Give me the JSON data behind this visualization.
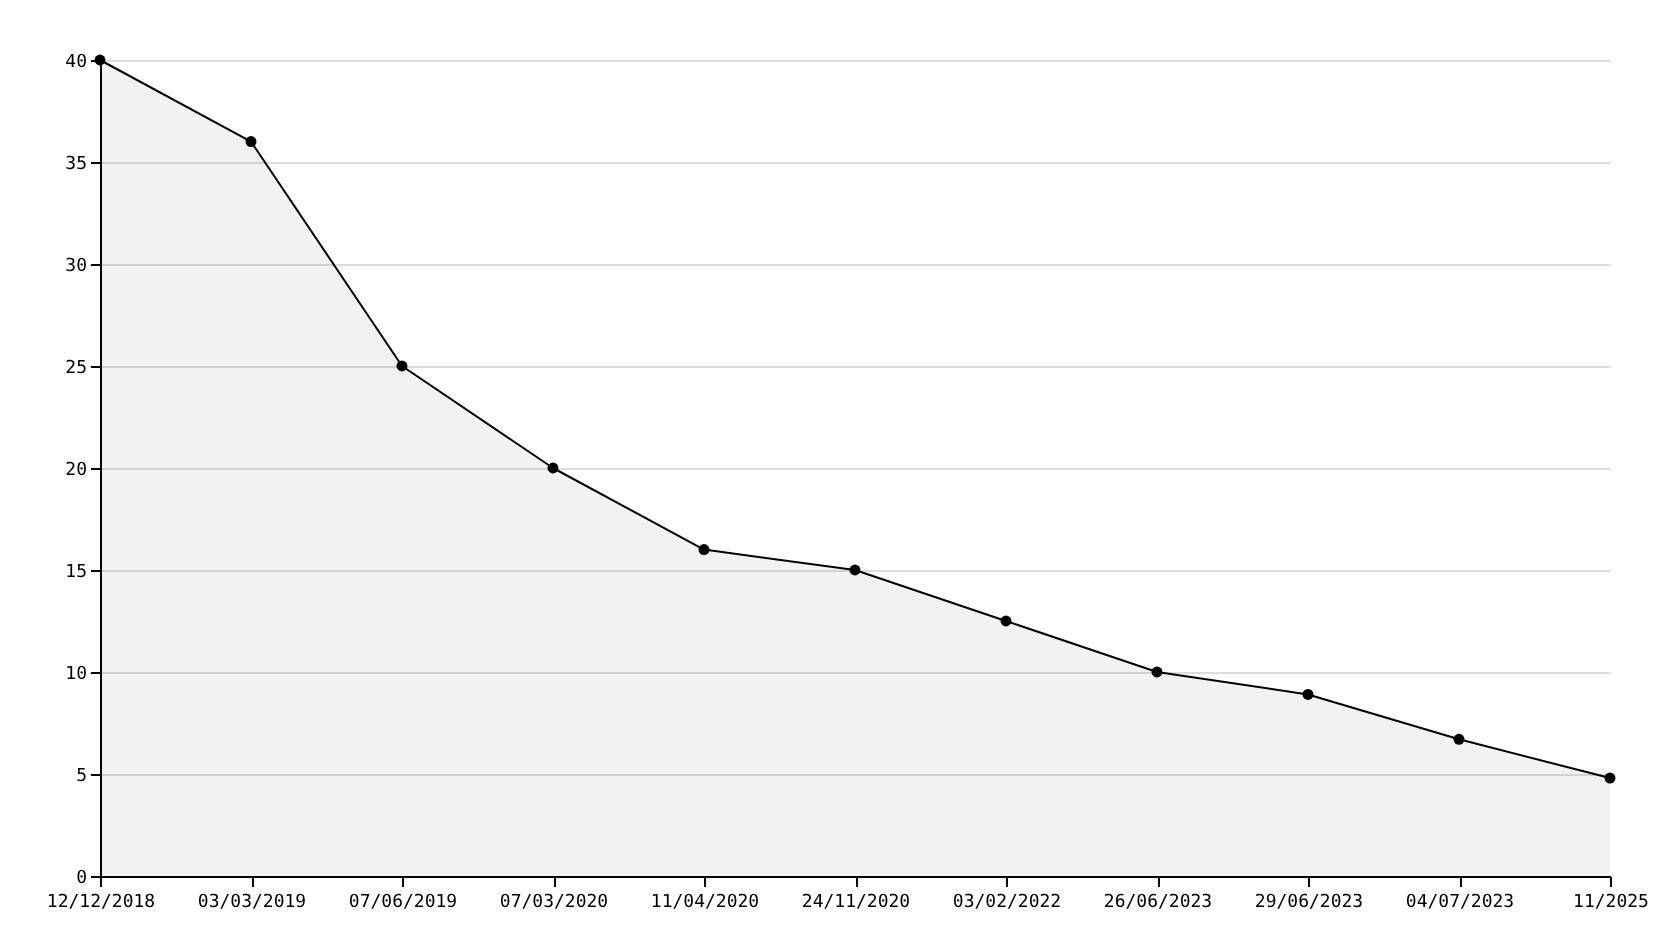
{
  "chart_data": {
    "type": "area",
    "categories": [
      "12/12/2018",
      "03/03/2019",
      "07/06/2019",
      "07/03/2020",
      "11/04/2020",
      "24/11/2020",
      "03/02/2022",
      "26/06/2023",
      "29/06/2023",
      "04/07/2023",
      "11/2025"
    ],
    "series": [
      {
        "color": "#000000",
        "values": [
          40,
          36,
          25,
          20,
          16,
          15,
          12.5,
          10,
          8.9,
          6.7,
          4.8
        ]
      }
    ],
    "ylim": [
      0,
      40
    ],
    "yticks": [
      0,
      5,
      10,
      15,
      20,
      25,
      30,
      35,
      40
    ],
    "grid": "y",
    "marker": "circle",
    "line_style": "solid"
  }
}
